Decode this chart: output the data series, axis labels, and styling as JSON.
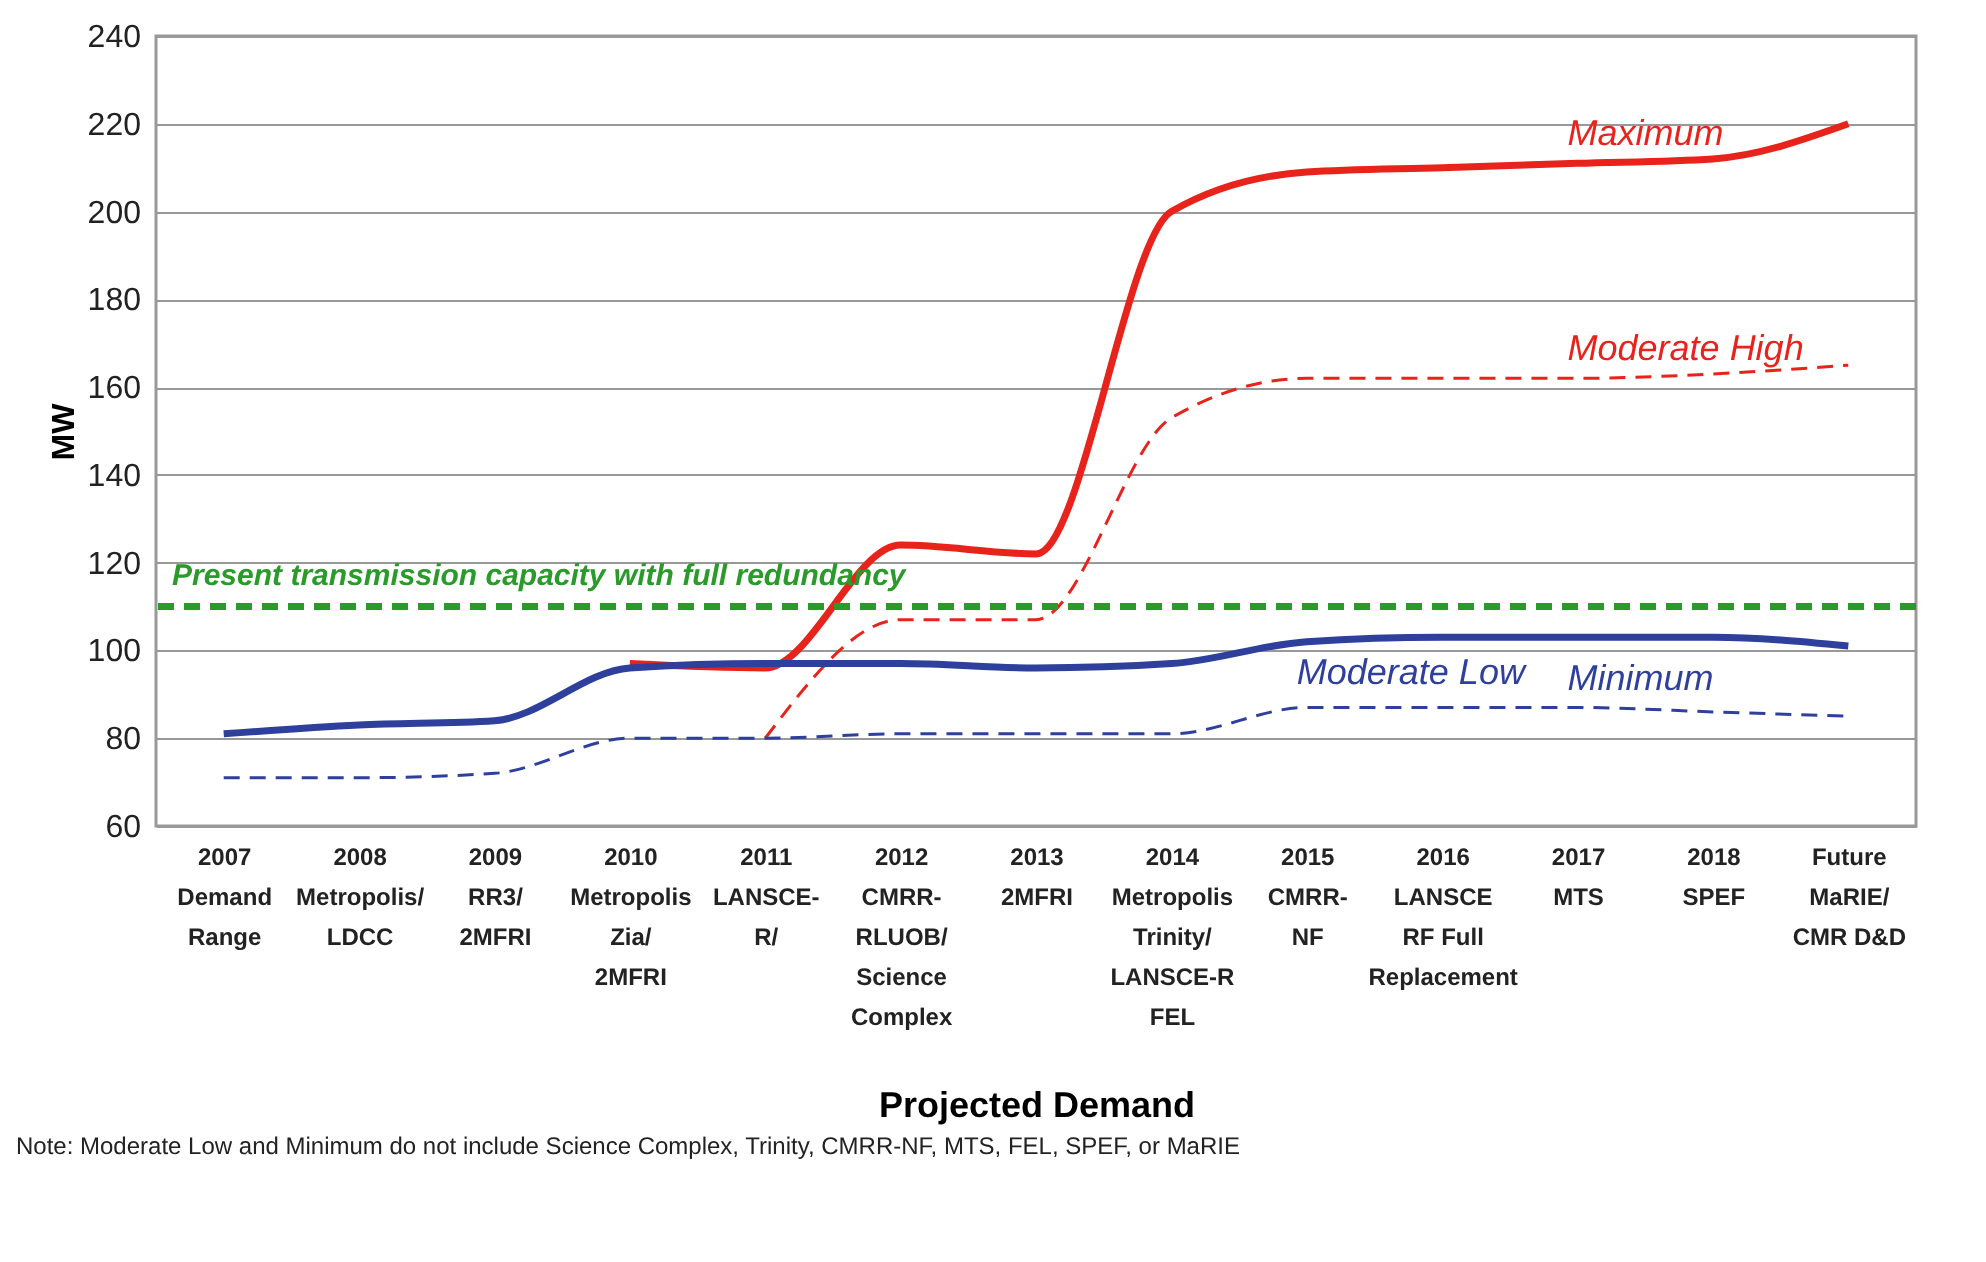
{
  "chart_data": {
    "type": "line",
    "xlabel": "Projected Demand",
    "ylabel": "MW",
    "categories": [
      "2007\n\nDemand\nRange",
      "2008\n\nMetropolis/\nLDCC",
      "2009\n\nRR3/\n2MFRI",
      "2010\n\nMetropolis\nZia/\n2MFRI",
      "2011\n\nLANSCE-\nR/",
      "2012\n\nCMRR-\nRLUOB/\nScience\nComplex",
      "2013\n\n2MFRI",
      "2014\n\nMetropolis\nTrinity/\nLANSCE-R\nFEL",
      "2015\n\nCMRR-\nNF",
      "2016\n\nLANSCE\nRF Full\nReplacement",
      "2017\n\nMTS",
      "2018\n\nSPEF",
      "Future\n\nMaRIE/\nCMR D&D"
    ],
    "series": [
      {
        "name": "Maximum",
        "color": "#e8231b",
        "line_style": "solid",
        "values": [
          null,
          null,
          null,
          97,
          96,
          124,
          122,
          200,
          209,
          210,
          211,
          212,
          220
        ]
      },
      {
        "name": "Moderate High",
        "color": "#e8231b",
        "line_style": "dashed",
        "values": [
          null,
          null,
          null,
          null,
          80,
          107,
          107,
          153,
          162,
          162,
          162,
          163,
          165
        ]
      },
      {
        "name": "Moderate Low",
        "color": "#2e3f9c",
        "line_style": "solid",
        "values": [
          81,
          83,
          84,
          96,
          97,
          97,
          96,
          97,
          102,
          103,
          103,
          103,
          101
        ]
      },
      {
        "name": "Minimum",
        "color": "#2e3f9c",
        "line_style": "dashed",
        "values": [
          71,
          71,
          72,
          80,
          80,
          81,
          81,
          81,
          87,
          87,
          87,
          86,
          85
        ]
      }
    ],
    "ylim": [
      60,
      240
    ],
    "yticks": [
      60,
      80,
      100,
      120,
      140,
      160,
      180,
      200,
      220,
      240
    ],
    "grid": "y",
    "legend": false,
    "ref_lines": [
      {
        "axis": "y",
        "value": 110,
        "label": "Present transmission capacity with full redundancy",
        "color": "#2a9a2a",
        "line_style": "dashed"
      }
    ],
    "annotations": [
      "Note:  Moderate Low and Minimum do not include Science Complex, Trinity, CMRR-NF, MTS, FEL, SPEF, or MaRIE"
    ]
  }
}
